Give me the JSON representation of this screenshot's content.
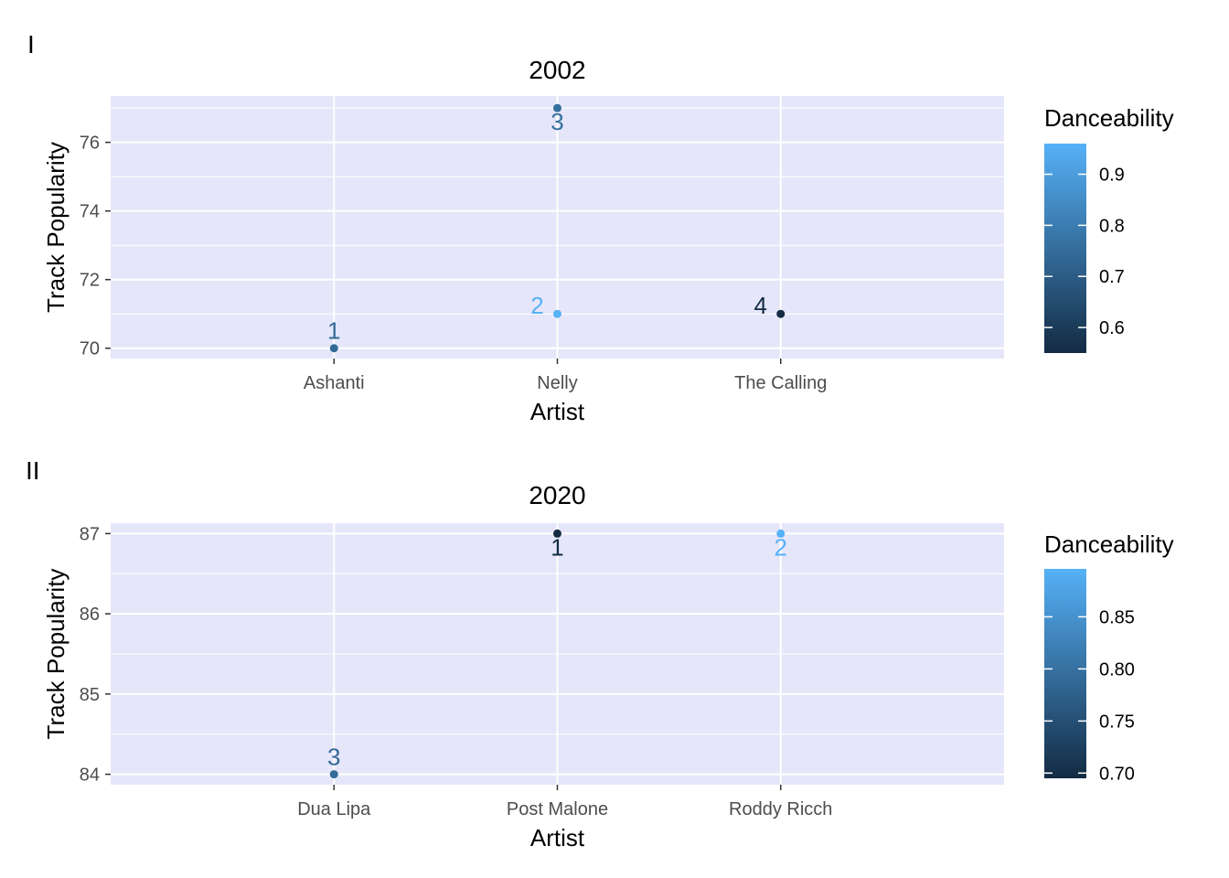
{
  "colors": {
    "panel_bg": "#E6E6FA",
    "grid": "#ffffff",
    "tick_text": "#4D4D4D",
    "text": "#000000",
    "scale_low": "#132B43",
    "scale_high": "#56B1F7"
  },
  "chart_data": [
    {
      "type": "scatter",
      "tag": "I",
      "title": "2002",
      "xlabel": "Artist",
      "ylabel": "Track Popularity",
      "categories": [
        "Ashanti",
        "Nelly",
        "The Calling"
      ],
      "ylim": [
        69.7,
        77.35
      ],
      "yticks": [
        70,
        72,
        74,
        76
      ],
      "yminor": [
        71,
        73,
        75,
        77
      ],
      "points": [
        {
          "artist": "Ashanti",
          "popularity": 70,
          "danceability": 0.74,
          "label": "1"
        },
        {
          "artist": "Nelly",
          "popularity": 71,
          "danceability": 0.96,
          "label": "2"
        },
        {
          "artist": "Nelly",
          "popularity": 77,
          "danceability": 0.76,
          "label": "3"
        },
        {
          "artist": "The Calling",
          "popularity": 71,
          "danceability": 0.55,
          "label": "4"
        }
      ],
      "legend": {
        "title": "Danceability",
        "position": "right",
        "range": [
          0.55,
          0.96
        ],
        "breaks": [
          {
            "value": 0.6,
            "label": "0.6"
          },
          {
            "value": 0.7,
            "label": "0.7"
          },
          {
            "value": 0.8,
            "label": "0.8"
          },
          {
            "value": 0.9,
            "label": "0.9"
          }
        ]
      }
    },
    {
      "type": "scatter",
      "tag": "II",
      "title": "2020",
      "xlabel": "Artist",
      "ylabel": "Track Popularity",
      "categories": [
        "Dua Lipa",
        "Post Malone",
        "Roddy Ricch"
      ],
      "ylim": [
        83.87,
        87.13
      ],
      "yticks": [
        84,
        85,
        86,
        87
      ],
      "yminor": [
        84.5,
        85.5,
        86.5
      ],
      "points": [
        {
          "artist": "Dua Lipa",
          "popularity": 84,
          "danceability": 0.79,
          "label": "3"
        },
        {
          "artist": "Post Malone",
          "popularity": 87,
          "danceability": 0.695,
          "label": "1"
        },
        {
          "artist": "Roddy Ricch",
          "popularity": 87,
          "danceability": 0.896,
          "label": "2"
        }
      ],
      "legend": {
        "title": "Danceability",
        "position": "right",
        "range": [
          0.695,
          0.896
        ],
        "breaks": [
          {
            "value": 0.7,
            "label": "0.70"
          },
          {
            "value": 0.75,
            "label": "0.75"
          },
          {
            "value": 0.8,
            "label": "0.80"
          },
          {
            "value": 0.85,
            "label": "0.85"
          }
        ]
      }
    }
  ]
}
